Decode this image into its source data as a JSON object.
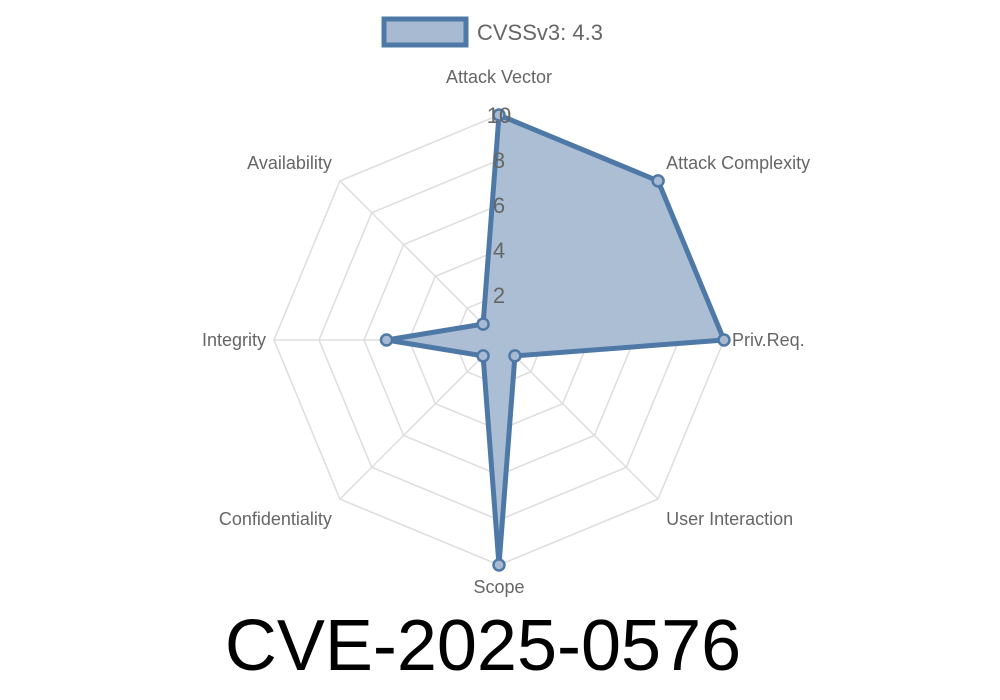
{
  "chart_data": {
    "type": "radar",
    "title": "CVE-2025-0576",
    "categories": [
      "Attack Vector",
      "Attack Complexity",
      "Priv.Req.",
      "User Interaction",
      "Scope",
      "Confidentiality",
      "Integrity",
      "Availability"
    ],
    "series": [
      {
        "name": "CVSSv3: 4.3",
        "values": [
          10,
          10,
          10,
          1,
          10,
          1,
          5,
          1
        ]
      }
    ],
    "ticks": [
      "2",
      "4",
      "6",
      "8",
      "10"
    ],
    "range": [
      0,
      10
    ],
    "grid": true,
    "legend": "top",
    "colors": {
      "line": "#4e79a7",
      "fill": "#a7bad2",
      "grid": "#dddddd"
    }
  }
}
